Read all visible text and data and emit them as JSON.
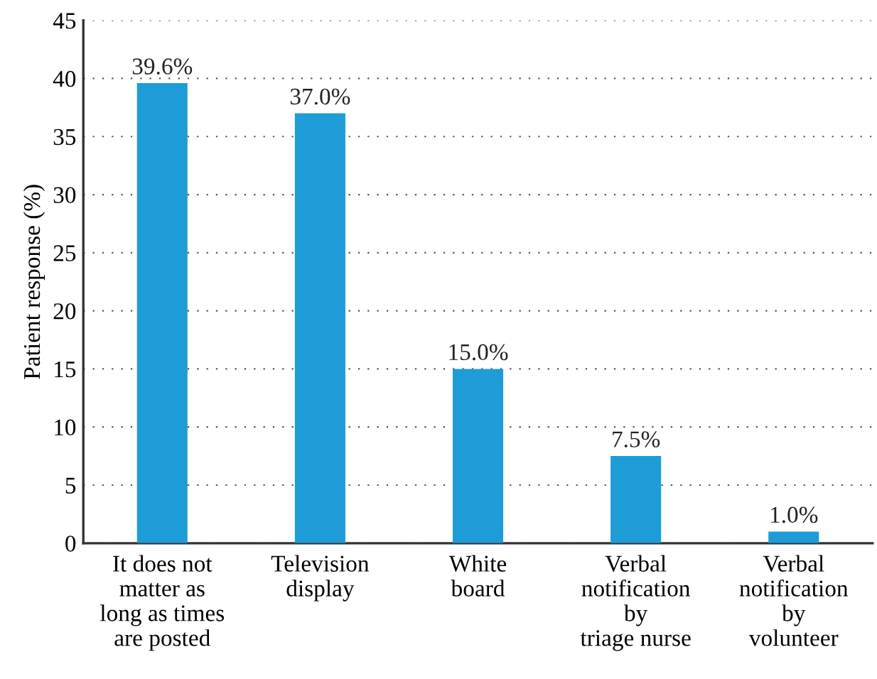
{
  "chart_data": {
    "type": "bar",
    "ylabel": "Patient response (%)",
    "categories": [
      "It does not\nmatter as\nlong as times\nare posted",
      "Television\ndisplay",
      "White\nboard",
      "Verbal\nnotification\nby\ntriage nurse",
      "Verbal\nnotification\nby\nvolunteer"
    ],
    "values": [
      39.6,
      37.0,
      15.0,
      7.5,
      1.0
    ],
    "color": "#1e9cd7",
    "value_labels": [
      "39.6%",
      "37.0%",
      "15.0%",
      "7.5%",
      "1.0%"
    ],
    "ylim": [
      0,
      45
    ],
    "yticks": [
      0,
      5,
      10,
      15,
      20,
      25,
      30,
      35,
      40,
      45
    ],
    "grid": "y"
  }
}
